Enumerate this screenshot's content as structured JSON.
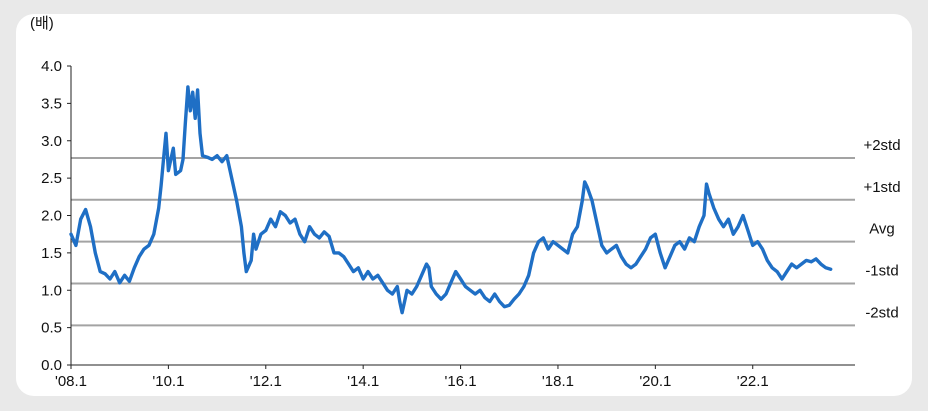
{
  "chart_data": {
    "type": "line",
    "title": "",
    "unit_label": "(배)",
    "xlabel": "",
    "ylabel": "",
    "xlim": [
      2008.0,
      2024.1
    ],
    "ylim": [
      0,
      4.0
    ],
    "y_ticks": [
      "0.0",
      "0.5",
      "1.0",
      "1.5",
      "2.0",
      "2.5",
      "3.0",
      "3.5",
      "4.0"
    ],
    "x_ticks": [
      {
        "label": "'08.1",
        "x": 2008.0
      },
      {
        "label": "'10.1",
        "x": 2010.0
      },
      {
        "label": "'12.1",
        "x": 2012.0
      },
      {
        "label": "'14.1",
        "x": 2014.0
      },
      {
        "label": "'16.1",
        "x": 2016.0
      },
      {
        "label": "'18.1",
        "x": 2018.0
      },
      {
        "label": "'20.1",
        "x": 2020.0
      },
      {
        "label": "'22.1",
        "x": 2022.0
      }
    ],
    "reference_lines": [
      {
        "label": "+2std",
        "value": 2.77
      },
      {
        "label": "+1std",
        "value": 2.21
      },
      {
        "label": "Avg",
        "value": 1.65
      },
      {
        "label": "-1std",
        "value": 1.09
      },
      {
        "label": "-2std",
        "value": 0.53
      }
    ],
    "series": [
      {
        "name": "",
        "color": "#1f6fc5",
        "points": [
          [
            2008.0,
            1.75
          ],
          [
            2008.1,
            1.6
          ],
          [
            2008.2,
            1.95
          ],
          [
            2008.3,
            2.08
          ],
          [
            2008.4,
            1.85
          ],
          [
            2008.5,
            1.5
          ],
          [
            2008.6,
            1.25
          ],
          [
            2008.7,
            1.22
          ],
          [
            2008.8,
            1.15
          ],
          [
            2008.9,
            1.25
          ],
          [
            2009.0,
            1.1
          ],
          [
            2009.1,
            1.2
          ],
          [
            2009.2,
            1.12
          ],
          [
            2009.3,
            1.3
          ],
          [
            2009.4,
            1.45
          ],
          [
            2009.5,
            1.55
          ],
          [
            2009.6,
            1.6
          ],
          [
            2009.7,
            1.75
          ],
          [
            2009.8,
            2.1
          ],
          [
            2009.85,
            2.4
          ],
          [
            2009.9,
            2.75
          ],
          [
            2009.95,
            3.1
          ],
          [
            2010.0,
            2.6
          ],
          [
            2010.1,
            2.9
          ],
          [
            2010.15,
            2.55
          ],
          [
            2010.25,
            2.6
          ],
          [
            2010.3,
            2.75
          ],
          [
            2010.35,
            3.25
          ],
          [
            2010.4,
            3.72
          ],
          [
            2010.45,
            3.4
          ],
          [
            2010.5,
            3.65
          ],
          [
            2010.55,
            3.3
          ],
          [
            2010.6,
            3.68
          ],
          [
            2010.65,
            3.1
          ],
          [
            2010.7,
            2.8
          ],
          [
            2010.8,
            2.78
          ],
          [
            2010.9,
            2.75
          ],
          [
            2011.0,
            2.8
          ],
          [
            2011.1,
            2.72
          ],
          [
            2011.2,
            2.8
          ],
          [
            2011.3,
            2.5
          ],
          [
            2011.4,
            2.2
          ],
          [
            2011.5,
            1.85
          ],
          [
            2011.55,
            1.5
          ],
          [
            2011.6,
            1.25
          ],
          [
            2011.7,
            1.4
          ],
          [
            2011.75,
            1.75
          ],
          [
            2011.8,
            1.55
          ],
          [
            2011.9,
            1.75
          ],
          [
            2012.0,
            1.8
          ],
          [
            2012.1,
            1.95
          ],
          [
            2012.2,
            1.85
          ],
          [
            2012.3,
            2.05
          ],
          [
            2012.4,
            2.0
          ],
          [
            2012.5,
            1.9
          ],
          [
            2012.6,
            1.95
          ],
          [
            2012.7,
            1.75
          ],
          [
            2012.8,
            1.65
          ],
          [
            2012.9,
            1.85
          ],
          [
            2013.0,
            1.75
          ],
          [
            2013.1,
            1.7
          ],
          [
            2013.2,
            1.78
          ],
          [
            2013.3,
            1.72
          ],
          [
            2013.4,
            1.5
          ],
          [
            2013.5,
            1.5
          ],
          [
            2013.6,
            1.45
          ],
          [
            2013.7,
            1.35
          ],
          [
            2013.8,
            1.25
          ],
          [
            2013.9,
            1.3
          ],
          [
            2014.0,
            1.15
          ],
          [
            2014.1,
            1.25
          ],
          [
            2014.2,
            1.15
          ],
          [
            2014.3,
            1.2
          ],
          [
            2014.4,
            1.1
          ],
          [
            2014.5,
            1.0
          ],
          [
            2014.6,
            0.95
          ],
          [
            2014.7,
            1.05
          ],
          [
            2014.75,
            0.85
          ],
          [
            2014.8,
            0.7
          ],
          [
            2014.85,
            0.85
          ],
          [
            2014.9,
            1.0
          ],
          [
            2015.0,
            0.95
          ],
          [
            2015.1,
            1.05
          ],
          [
            2015.2,
            1.2
          ],
          [
            2015.3,
            1.35
          ],
          [
            2015.35,
            1.3
          ],
          [
            2015.4,
            1.05
          ],
          [
            2015.5,
            0.95
          ],
          [
            2015.6,
            0.88
          ],
          [
            2015.7,
            0.95
          ],
          [
            2015.8,
            1.1
          ],
          [
            2015.9,
            1.25
          ],
          [
            2016.0,
            1.15
          ],
          [
            2016.1,
            1.05
          ],
          [
            2016.2,
            1.0
          ],
          [
            2016.3,
            0.95
          ],
          [
            2016.4,
            1.0
          ],
          [
            2016.5,
            0.9
          ],
          [
            2016.6,
            0.85
          ],
          [
            2016.7,
            0.95
          ],
          [
            2016.8,
            0.85
          ],
          [
            2016.9,
            0.78
          ],
          [
            2017.0,
            0.8
          ],
          [
            2017.1,
            0.88
          ],
          [
            2017.2,
            0.95
          ],
          [
            2017.3,
            1.05
          ],
          [
            2017.4,
            1.2
          ],
          [
            2017.5,
            1.5
          ],
          [
            2017.6,
            1.65
          ],
          [
            2017.7,
            1.7
          ],
          [
            2017.8,
            1.55
          ],
          [
            2017.9,
            1.65
          ],
          [
            2018.0,
            1.6
          ],
          [
            2018.1,
            1.55
          ],
          [
            2018.2,
            1.5
          ],
          [
            2018.3,
            1.75
          ],
          [
            2018.4,
            1.85
          ],
          [
            2018.5,
            2.2
          ],
          [
            2018.55,
            2.45
          ],
          [
            2018.6,
            2.38
          ],
          [
            2018.7,
            2.2
          ],
          [
            2018.8,
            1.9
          ],
          [
            2018.9,
            1.6
          ],
          [
            2019.0,
            1.5
          ],
          [
            2019.1,
            1.55
          ],
          [
            2019.2,
            1.6
          ],
          [
            2019.3,
            1.45
          ],
          [
            2019.4,
            1.35
          ],
          [
            2019.5,
            1.3
          ],
          [
            2019.6,
            1.35
          ],
          [
            2019.7,
            1.45
          ],
          [
            2019.8,
            1.55
          ],
          [
            2019.9,
            1.7
          ],
          [
            2020.0,
            1.75
          ],
          [
            2020.1,
            1.5
          ],
          [
            2020.2,
            1.3
          ],
          [
            2020.3,
            1.45
          ],
          [
            2020.4,
            1.6
          ],
          [
            2020.5,
            1.65
          ],
          [
            2020.6,
            1.55
          ],
          [
            2020.7,
            1.7
          ],
          [
            2020.8,
            1.65
          ],
          [
            2020.9,
            1.85
          ],
          [
            2021.0,
            2.0
          ],
          [
            2021.05,
            2.42
          ],
          [
            2021.1,
            2.3
          ],
          [
            2021.2,
            2.1
          ],
          [
            2021.3,
            1.95
          ],
          [
            2021.4,
            1.85
          ],
          [
            2021.5,
            1.95
          ],
          [
            2021.6,
            1.75
          ],
          [
            2021.7,
            1.85
          ],
          [
            2021.8,
            2.0
          ],
          [
            2021.9,
            1.8
          ],
          [
            2022.0,
            1.6
          ],
          [
            2022.1,
            1.65
          ],
          [
            2022.2,
            1.55
          ],
          [
            2022.3,
            1.4
          ],
          [
            2022.4,
            1.3
          ],
          [
            2022.5,
            1.25
          ],
          [
            2022.6,
            1.15
          ],
          [
            2022.7,
            1.25
          ],
          [
            2022.8,
            1.35
          ],
          [
            2022.9,
            1.3
          ],
          [
            2023.0,
            1.35
          ],
          [
            2023.1,
            1.4
          ],
          [
            2023.2,
            1.38
          ],
          [
            2023.3,
            1.42
          ],
          [
            2023.4,
            1.35
          ],
          [
            2023.5,
            1.3
          ],
          [
            2023.6,
            1.28
          ]
        ]
      }
    ]
  }
}
